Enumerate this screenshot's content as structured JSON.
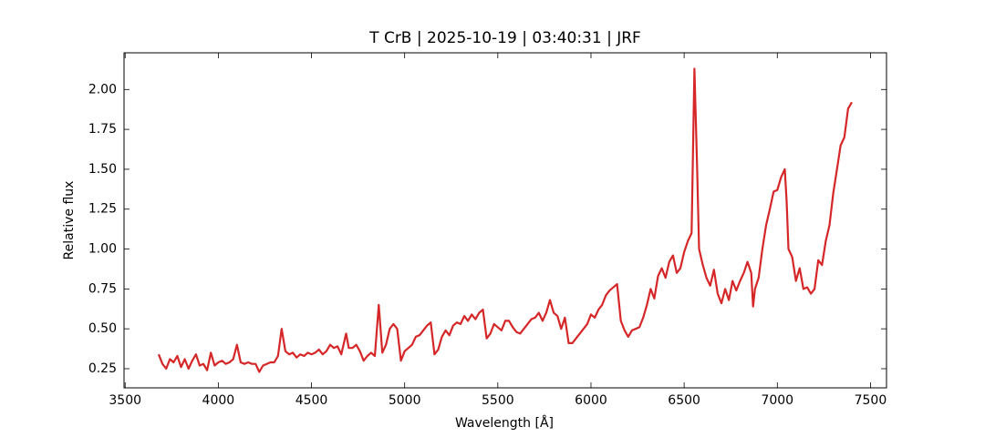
{
  "chart_data": {
    "type": "line",
    "title": "T CrB | 2025-10-19 | 03:40:31 | JRF",
    "xlabel": "Wavelength [Å]",
    "ylabel": "Relative flux",
    "xlim": [
      3494,
      7586
    ],
    "ylim": [
      0.13,
      2.23
    ],
    "xticks": [
      3500,
      4000,
      4500,
      5000,
      5500,
      6000,
      6500,
      7000,
      7500
    ],
    "yticks": [
      {
        "value": 0.25,
        "label": "0.25"
      },
      {
        "value": 0.5,
        "label": "0.50"
      },
      {
        "value": 0.75,
        "label": "0.75"
      },
      {
        "value": 1.0,
        "label": "1.00"
      },
      {
        "value": 1.25,
        "label": "1.25"
      },
      {
        "value": 1.5,
        "label": "1.50"
      },
      {
        "value": 1.75,
        "label": "1.75"
      },
      {
        "value": 2.0,
        "label": "2.00"
      }
    ],
    "color": "#d62728",
    "x": [
      3680,
      3700,
      3720,
      3740,
      3760,
      3780,
      3800,
      3820,
      3840,
      3860,
      3880,
      3900,
      3920,
      3940,
      3960,
      3980,
      4000,
      4020,
      4040,
      4060,
      4080,
      4100,
      4120,
      4140,
      4160,
      4180,
      4200,
      4220,
      4240,
      4260,
      4280,
      4300,
      4320,
      4340,
      4360,
      4380,
      4400,
      4420,
      4440,
      4460,
      4480,
      4500,
      4520,
      4540,
      4560,
      4580,
      4600,
      4620,
      4640,
      4660,
      4686,
      4700,
      4720,
      4740,
      4760,
      4780,
      4800,
      4820,
      4840,
      4861,
      4880,
      4900,
      4920,
      4940,
      4960,
      4980,
      5000,
      5020,
      5040,
      5060,
      5080,
      5100,
      5120,
      5140,
      5160,
      5180,
      5200,
      5220,
      5240,
      5260,
      5280,
      5300,
      5320,
      5340,
      5360,
      5380,
      5400,
      5420,
      5440,
      5460,
      5480,
      5500,
      5520,
      5540,
      5560,
      5580,
      5600,
      5620,
      5640,
      5660,
      5680,
      5700,
      5720,
      5740,
      5760,
      5780,
      5800,
      5820,
      5840,
      5860,
      5880,
      5900,
      5920,
      5940,
      5960,
      5980,
      6000,
      6020,
      6040,
      6060,
      6080,
      6100,
      6120,
      6140,
      6160,
      6180,
      6200,
      6220,
      6240,
      6260,
      6280,
      6300,
      6320,
      6340,
      6360,
      6380,
      6400,
      6420,
      6440,
      6460,
      6480,
      6500,
      6520,
      6540,
      6555,
      6570,
      6580,
      6600,
      6620,
      6640,
      6660,
      6680,
      6700,
      6720,
      6740,
      6760,
      6780,
      6800,
      6820,
      6840,
      6860,
      6870,
      6880,
      6900,
      6920,
      6940,
      6960,
      6980,
      7000,
      7020,
      7040,
      7050,
      7060,
      7080,
      7100,
      7120,
      7140,
      7160,
      7180,
      7200,
      7220,
      7240,
      7260,
      7280,
      7300,
      7320,
      7340,
      7360,
      7380,
      7400
    ],
    "values": [
      0.34,
      0.28,
      0.25,
      0.31,
      0.29,
      0.33,
      0.26,
      0.31,
      0.25,
      0.3,
      0.34,
      0.27,
      0.28,
      0.24,
      0.35,
      0.27,
      0.29,
      0.3,
      0.28,
      0.29,
      0.31,
      0.4,
      0.29,
      0.28,
      0.29,
      0.28,
      0.28,
      0.23,
      0.27,
      0.28,
      0.29,
      0.29,
      0.33,
      0.5,
      0.36,
      0.34,
      0.35,
      0.32,
      0.34,
      0.33,
      0.35,
      0.34,
      0.35,
      0.37,
      0.34,
      0.36,
      0.4,
      0.38,
      0.39,
      0.34,
      0.47,
      0.38,
      0.38,
      0.4,
      0.36,
      0.3,
      0.33,
      0.35,
      0.33,
      0.65,
      0.35,
      0.4,
      0.5,
      0.53,
      0.5,
      0.3,
      0.36,
      0.38,
      0.4,
      0.45,
      0.46,
      0.49,
      0.52,
      0.54,
      0.34,
      0.37,
      0.45,
      0.49,
      0.46,
      0.52,
      0.54,
      0.53,
      0.58,
      0.55,
      0.59,
      0.56,
      0.6,
      0.62,
      0.44,
      0.47,
      0.53,
      0.51,
      0.49,
      0.55,
      0.55,
      0.51,
      0.48,
      0.47,
      0.5,
      0.53,
      0.56,
      0.57,
      0.6,
      0.55,
      0.6,
      0.68,
      0.6,
      0.58,
      0.5,
      0.57,
      0.41,
      0.41,
      0.44,
      0.47,
      0.5,
      0.53,
      0.59,
      0.57,
      0.62,
      0.65,
      0.71,
      0.74,
      0.76,
      0.78,
      0.55,
      0.49,
      0.45,
      0.49,
      0.5,
      0.51,
      0.57,
      0.65,
      0.75,
      0.69,
      0.83,
      0.88,
      0.82,
      0.92,
      0.96,
      0.85,
      0.88,
      0.98,
      1.05,
      1.1,
      2.13,
      1.5,
      1.0,
      0.9,
      0.82,
      0.77,
      0.87,
      0.72,
      0.66,
      0.75,
      0.68,
      0.8,
      0.74,
      0.8,
      0.85,
      0.92,
      0.85,
      0.64,
      0.75,
      0.82,
      1.0,
      1.15,
      1.25,
      1.36,
      1.37,
      1.45,
      1.5,
      1.3,
      1.0,
      0.95,
      0.8,
      0.88,
      0.75,
      0.76,
      0.72,
      0.75,
      0.93,
      0.9,
      1.05,
      1.15,
      1.35,
      1.5,
      1.65,
      1.7,
      1.88,
      1.92
    ]
  }
}
